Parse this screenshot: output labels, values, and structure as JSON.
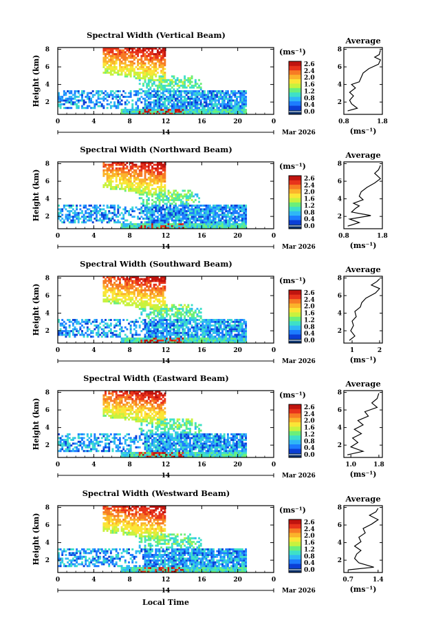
{
  "figure": {
    "xlabel": "Local Time",
    "ylabel": "Height (km)",
    "date_day": "14",
    "date_month": "Mar 2026",
    "colorbar_unit": "(ms⁻¹)",
    "avg_xlabel": "(ms⁻¹)",
    "avg_title": "Average",
    "colorbar_ticks": [
      "2.6",
      "2.4",
      "2.0",
      "1.6",
      "1.2",
      "0.8",
      "0.4",
      "0.0"
    ],
    "colormap": [
      "#08306b",
      "#0b3fd6",
      "#1d7cff",
      "#2fb7f5",
      "#3ee0c8",
      "#6bef7a",
      "#c8f23e",
      "#fbe536",
      "#fbb32b",
      "#f77b24",
      "#e8331b",
      "#c0140f"
    ]
  },
  "chart_data": [
    {
      "type": "heatmap",
      "title": "Spectral Width (Vertical Beam)",
      "x_ticks": [
        "0",
        "4",
        "8",
        "12",
        "16",
        "20",
        "0"
      ],
      "y_ticks": [
        "2",
        "4",
        "6",
        "8"
      ],
      "xlim": [
        0,
        24
      ],
      "ylim": [
        0.6,
        8.2
      ],
      "avg": {
        "ticks": [
          "0.8",
          "1.8"
        ],
        "xlim": [
          0.8,
          1.8
        ],
        "profile": [
          [
            0.9,
            1.0
          ],
          [
            1.15,
            1.3
          ],
          [
            1.0,
            1.8
          ],
          [
            0.95,
            2.2
          ],
          [
            1.05,
            2.7
          ],
          [
            0.95,
            3.1
          ],
          [
            1.1,
            3.6
          ],
          [
            1.0,
            4.0
          ],
          [
            1.2,
            4.3
          ],
          [
            1.25,
            4.8
          ],
          [
            1.3,
            5.3
          ],
          [
            1.45,
            5.8
          ],
          [
            1.7,
            6.3
          ],
          [
            1.75,
            6.8
          ],
          [
            1.6,
            7.1
          ],
          [
            1.72,
            7.4
          ],
          [
            1.75,
            7.9
          ]
        ]
      }
    },
    {
      "type": "heatmap",
      "title": "Spectral Width (Northward Beam)",
      "x_ticks": [
        "0",
        "4",
        "8",
        "12",
        "16",
        "20",
        "0"
      ],
      "y_ticks": [
        "2",
        "4",
        "6",
        "8"
      ],
      "xlim": [
        0,
        24
      ],
      "ylim": [
        0.6,
        8.2
      ],
      "avg": {
        "ticks": [
          "0.8",
          "1.8"
        ],
        "xlim": [
          0.8,
          1.8
        ],
        "profile": [
          [
            0.9,
            0.9
          ],
          [
            1.2,
            1.3
          ],
          [
            0.95,
            1.7
          ],
          [
            1.5,
            2.1
          ],
          [
            1.0,
            2.5
          ],
          [
            1.1,
            2.9
          ],
          [
            1.2,
            3.2
          ],
          [
            1.05,
            3.5
          ],
          [
            1.3,
            3.9
          ],
          [
            1.2,
            4.3
          ],
          [
            1.25,
            4.8
          ],
          [
            1.4,
            5.3
          ],
          [
            1.6,
            5.8
          ],
          [
            1.75,
            6.3
          ],
          [
            1.6,
            6.9
          ],
          [
            1.7,
            7.3
          ],
          [
            1.75,
            7.8
          ]
        ]
      }
    },
    {
      "type": "heatmap",
      "title": "Spectral Width (Southward Beam)",
      "x_ticks": [
        "0",
        "4",
        "8",
        "12",
        "16",
        "20",
        "0"
      ],
      "y_ticks": [
        "2",
        "4",
        "6",
        "8"
      ],
      "xlim": [
        0,
        24
      ],
      "ylim": [
        0.6,
        8.2
      ],
      "avg": {
        "ticks": [
          "1",
          "2"
        ],
        "xlim": [
          0.7,
          2.1
        ],
        "profile": [
          [
            0.9,
            0.9
          ],
          [
            1.1,
            1.4
          ],
          [
            0.95,
            2.0
          ],
          [
            1.05,
            2.6
          ],
          [
            1.0,
            3.1
          ],
          [
            1.15,
            3.6
          ],
          [
            1.1,
            4.2
          ],
          [
            1.3,
            4.7
          ],
          [
            1.35,
            5.2
          ],
          [
            1.5,
            5.7
          ],
          [
            1.85,
            6.3
          ],
          [
            2.0,
            6.8
          ],
          [
            1.7,
            7.2
          ],
          [
            1.9,
            7.6
          ],
          [
            2.0,
            7.9
          ]
        ]
      }
    },
    {
      "type": "heatmap",
      "title": "Spectral Width (Eastward Beam)",
      "x_ticks": [
        "0",
        "4",
        "8",
        "12",
        "16",
        "20",
        "0"
      ],
      "y_ticks": [
        "2",
        "4",
        "6",
        "8"
      ],
      "xlim": [
        0,
        24
      ],
      "ylim": [
        0.6,
        8.2
      ],
      "avg": {
        "ticks": [
          "1.0",
          "1.8"
        ],
        "xlim": [
          0.8,
          1.9
        ],
        "profile": [
          [
            0.9,
            0.9
          ],
          [
            1.35,
            1.3
          ],
          [
            1.0,
            1.8
          ],
          [
            1.2,
            2.3
          ],
          [
            1.05,
            2.8
          ],
          [
            1.3,
            3.3
          ],
          [
            1.1,
            3.8
          ],
          [
            1.35,
            4.3
          ],
          [
            1.2,
            4.8
          ],
          [
            1.5,
            5.3
          ],
          [
            1.4,
            5.8
          ],
          [
            1.75,
            6.3
          ],
          [
            1.6,
            6.8
          ],
          [
            1.75,
            7.3
          ],
          [
            1.8,
            7.9
          ]
        ]
      }
    },
    {
      "type": "heatmap",
      "title": "Spectral Width (Westward Beam)",
      "x_ticks": [
        "0",
        "4",
        "8",
        "12",
        "16",
        "20",
        "0"
      ],
      "y_ticks": [
        "2",
        "4",
        "6",
        "8"
      ],
      "xlim": [
        0,
        24
      ],
      "ylim": [
        0.6,
        8.2
      ],
      "avg": {
        "ticks": [
          "0.7",
          "1.4"
        ],
        "xlim": [
          0.6,
          1.5
        ],
        "profile": [
          [
            0.7,
            0.9
          ],
          [
            1.3,
            1.2
          ],
          [
            0.95,
            1.7
          ],
          [
            0.85,
            2.2
          ],
          [
            0.9,
            2.7
          ],
          [
            1.0,
            3.1
          ],
          [
            0.85,
            3.6
          ],
          [
            1.0,
            4.1
          ],
          [
            0.95,
            4.6
          ],
          [
            1.1,
            5.1
          ],
          [
            1.05,
            5.6
          ],
          [
            1.25,
            6.1
          ],
          [
            1.4,
            6.6
          ],
          [
            1.2,
            7.1
          ],
          [
            1.35,
            7.5
          ],
          [
            1.4,
            7.9
          ]
        ]
      }
    }
  ]
}
